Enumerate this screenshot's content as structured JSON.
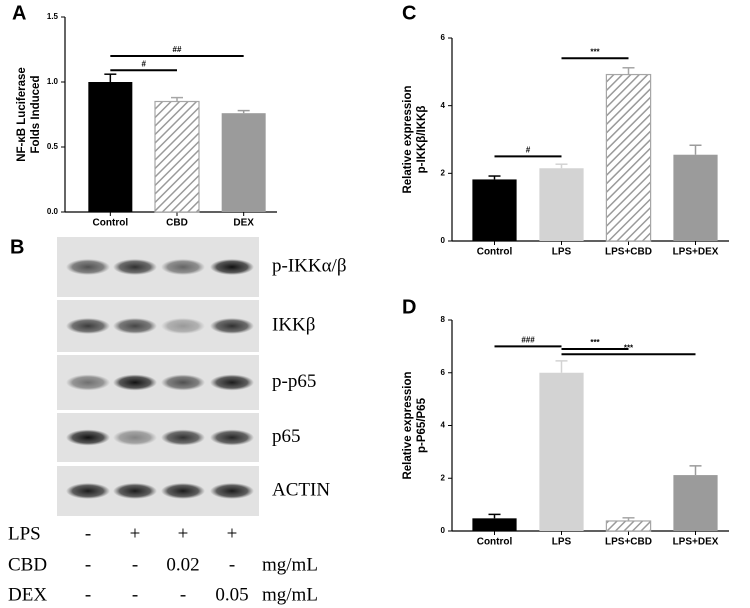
{
  "chart_data": [
    {
      "type": "bar",
      "panel": "A",
      "ylabel": [
        "NF-κB Luciferase",
        "Folds Induced"
      ],
      "categories": [
        "Control",
        "CBD",
        "DEX"
      ],
      "values": [
        1.0,
        0.85,
        0.76
      ],
      "errors": [
        0.06,
        0.03,
        0.02
      ],
      "colors": [
        "#000000",
        "#a6a6a6",
        "#9b9b9b"
      ],
      "hatch": [
        false,
        true,
        false
      ],
      "ylim": [
        0,
        1.5
      ],
      "yticks": [
        {
          "value": 0,
          "label": "0.0"
        },
        {
          "value": 0.5,
          "label": "0.5"
        },
        {
          "value": 1.0,
          "label": "1.0"
        },
        {
          "value": 1.5,
          "label": "1.5"
        }
      ],
      "brackets": [
        {
          "from": 0,
          "to": 1,
          "y": 1.09,
          "label": "#"
        },
        {
          "from": 0,
          "to": 2,
          "y": 1.2,
          "label": "##"
        }
      ]
    },
    {
      "type": "bar",
      "panel": "C",
      "ylabel": [
        "Relative expression",
        "p-IKKβ/IKKβ"
      ],
      "categories": [
        "Control",
        "LPS",
        "LPS+CBD",
        "LPS+DEX"
      ],
      "values": [
        1.82,
        2.15,
        4.92,
        2.55
      ],
      "errors": [
        0.1,
        0.12,
        0.2,
        0.28
      ],
      "colors": [
        "#000000",
        "#d3d3d3",
        "#a6a6a6",
        "#9b9b9b"
      ],
      "hatch": [
        false,
        false,
        true,
        false
      ],
      "ylim": [
        0,
        6
      ],
      "yticks": [
        0,
        2,
        4,
        6
      ],
      "brackets": [
        {
          "from": 0,
          "to": 1,
          "y": 2.5,
          "label": "#"
        },
        {
          "from": 1,
          "to": 2,
          "y": 5.4,
          "label": "***"
        }
      ]
    },
    {
      "type": "bar",
      "panel": "D",
      "ylabel": [
        "Relative expression",
        "p-P65/P65"
      ],
      "categories": [
        "Control",
        "LPS",
        "LPS+CBD",
        "LPS+DEX"
      ],
      "values": [
        0.48,
        6.0,
        0.38,
        2.12
      ],
      "errors": [
        0.15,
        0.45,
        0.12,
        0.35
      ],
      "colors": [
        "#000000",
        "#d3d3d3",
        "#a6a6a6",
        "#9b9b9b"
      ],
      "hatch": [
        false,
        false,
        true,
        false
      ],
      "ylim": [
        0,
        8
      ],
      "yticks": [
        0,
        2,
        4,
        6,
        8
      ],
      "brackets": [
        {
          "from": 0,
          "to": 1,
          "y": 7.0,
          "label": "###"
        },
        {
          "from": 1,
          "to": 2,
          "y": 6.9,
          "label": "***"
        },
        {
          "from": 1,
          "to": 3,
          "y": 6.7,
          "label": "***"
        }
      ]
    }
  ],
  "blot": {
    "panel": "B",
    "rows": [
      "p-IKKα/β",
      "IKKβ",
      "p-p65",
      "p65",
      "ACTIN"
    ],
    "treatments": [
      {
        "name": "LPS",
        "cells": [
          "-",
          "+",
          "+",
          "+"
        ]
      },
      {
        "name": "CBD",
        "cells": [
          "-",
          "-",
          "0.02",
          "-"
        ],
        "unit": "mg/mL"
      },
      {
        "name": "DEX",
        "cells": [
          "-",
          "-",
          "-",
          "0.05"
        ],
        "unit": "mg/mL"
      }
    ]
  }
}
